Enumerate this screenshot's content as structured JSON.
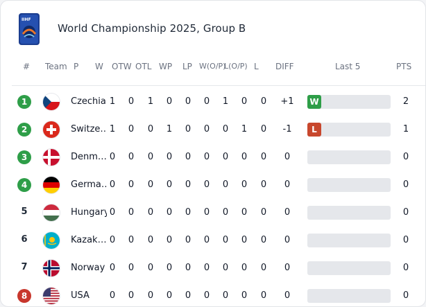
{
  "title": "World Championship 2025, Group B",
  "logo": {
    "icon": "iihf-logo-icon",
    "text": "IIHF"
  },
  "headers": [
    "#",
    "Team",
    "P",
    "W",
    "OTW",
    "OTL",
    "WP",
    "LP",
    "W(O/P)",
    "L(O/P)",
    "L",
    "DIFF",
    "Last 5",
    "PTS"
  ],
  "colors": {
    "badge_green": "#2e9e48",
    "badge_red": "#c8372d",
    "win": "#2e9e48",
    "loss": "#c8472d",
    "empty": "#e5e7eb"
  },
  "rows": [
    {
      "rank": "1",
      "rank_style": "green",
      "team": "Czechia",
      "flag": "czechia-flag-icon",
      "p": "1",
      "w": "0",
      "otw": "1",
      "otl": "0",
      "wp": "0",
      "lp": "0",
      "wop": "1",
      "lop": "0",
      "l": "0",
      "diff": "+1",
      "last5": [
        "W"
      ],
      "pts": "2"
    },
    {
      "rank": "2",
      "rank_style": "green",
      "team": "Switze…",
      "flag": "switzerland-flag-icon",
      "p": "1",
      "w": "0",
      "otw": "0",
      "otl": "1",
      "wp": "0",
      "lp": "0",
      "wop": "0",
      "lop": "1",
      "l": "0",
      "diff": "-1",
      "last5": [
        "L"
      ],
      "pts": "1"
    },
    {
      "rank": "3",
      "rank_style": "green",
      "team": "Denm…",
      "flag": "denmark-flag-icon",
      "p": "0",
      "w": "0",
      "otw": "0",
      "otl": "0",
      "wp": "0",
      "lp": "0",
      "wop": "0",
      "lop": "0",
      "l": "0",
      "diff": "0",
      "last5": [],
      "pts": "0"
    },
    {
      "rank": "4",
      "rank_style": "green",
      "team": "Germa…",
      "flag": "germany-flag-icon",
      "p": "0",
      "w": "0",
      "otw": "0",
      "otl": "0",
      "wp": "0",
      "lp": "0",
      "wop": "0",
      "lop": "0",
      "l": "0",
      "diff": "0",
      "last5": [],
      "pts": "0"
    },
    {
      "rank": "5",
      "rank_style": "plain",
      "team": "Hungary",
      "flag": "hungary-flag-icon",
      "p": "0",
      "w": "0",
      "otw": "0",
      "otl": "0",
      "wp": "0",
      "lp": "0",
      "wop": "0",
      "lop": "0",
      "l": "0",
      "diff": "0",
      "last5": [],
      "pts": "0"
    },
    {
      "rank": "6",
      "rank_style": "plain",
      "team": "Kazak…",
      "flag": "kazakhstan-flag-icon",
      "p": "0",
      "w": "0",
      "otw": "0",
      "otl": "0",
      "wp": "0",
      "lp": "0",
      "wop": "0",
      "lop": "0",
      "l": "0",
      "diff": "0",
      "last5": [],
      "pts": "0"
    },
    {
      "rank": "7",
      "rank_style": "plain",
      "team": "Norway",
      "flag": "norway-flag-icon",
      "p": "0",
      "w": "0",
      "otw": "0",
      "otl": "0",
      "wp": "0",
      "lp": "0",
      "wop": "0",
      "lop": "0",
      "l": "0",
      "diff": "0",
      "last5": [],
      "pts": "0"
    },
    {
      "rank": "8",
      "rank_style": "red",
      "team": "USA",
      "flag": "usa-flag-icon",
      "p": "0",
      "w": "0",
      "otw": "0",
      "otl": "0",
      "wp": "0",
      "lp": "0",
      "wop": "0",
      "lop": "0",
      "l": "0",
      "diff": "0",
      "last5": [],
      "pts": "0"
    }
  ]
}
